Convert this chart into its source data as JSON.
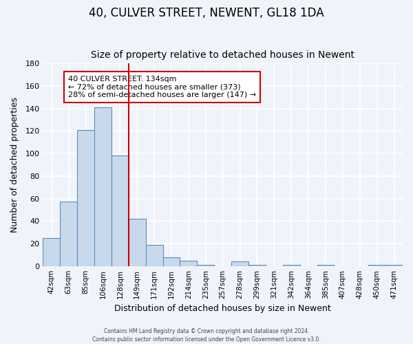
{
  "title": "40, CULVER STREET, NEWENT, GL18 1DA",
  "subtitle": "Size of property relative to detached houses in Newent",
  "xlabel": "Distribution of detached houses by size in Newent",
  "ylabel": "Number of detached properties",
  "bar_labels": [
    "42sqm",
    "63sqm",
    "85sqm",
    "106sqm",
    "128sqm",
    "149sqm",
    "171sqm",
    "192sqm",
    "214sqm",
    "235sqm",
    "257sqm",
    "278sqm",
    "299sqm",
    "321sqm",
    "342sqm",
    "364sqm",
    "385sqm",
    "407sqm",
    "428sqm",
    "450sqm",
    "471sqm"
  ],
  "bar_values": [
    25,
    57,
    121,
    141,
    98,
    42,
    19,
    8,
    5,
    1,
    0,
    4,
    1,
    0,
    1,
    0,
    1,
    0,
    0,
    1,
    1
  ],
  "bar_color": "#c9d9ec",
  "bar_edge_color": "#5b8db8",
  "ylim": [
    0,
    180
  ],
  "yticks": [
    0,
    20,
    40,
    60,
    80,
    100,
    120,
    140,
    160,
    180
  ],
  "vline_pos": 4.5,
  "vline_color": "#cc0000",
  "annotation_title": "40 CULVER STREET: 134sqm",
  "annotation_line1": "← 72% of detached houses are smaller (373)",
  "annotation_line2": "28% of semi-detached houses are larger (147) →",
  "annotation_box_color": "#ffffff",
  "annotation_box_edge": "#cc0000",
  "footer1": "Contains HM Land Registry data © Crown copyright and database right 2024.",
  "footer2": "Contains public sector information licensed under the Open Government Licence v3.0.",
  "background_color": "#f0f4fa",
  "grid_color": "#ffffff",
  "title_fontsize": 12,
  "subtitle_fontsize": 10
}
